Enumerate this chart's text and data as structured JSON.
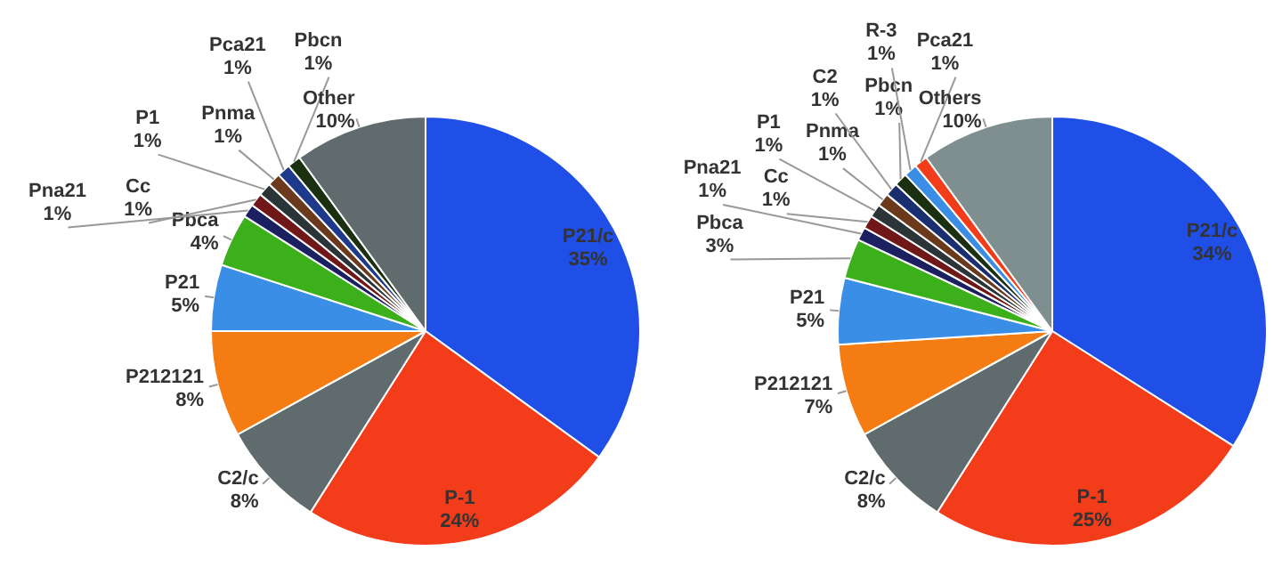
{
  "chart_data": [
    {
      "type": "pie",
      "categories": [
        "P21/c",
        "P-1",
        "C2/c",
        "P212121",
        "P21",
        "Pbca",
        "Pna21",
        "Cc",
        "P1",
        "Pnma",
        "Pca21",
        "Pbcn",
        "Other"
      ],
      "values": [
        35,
        24,
        8,
        8,
        5,
        4,
        1,
        1,
        1,
        1,
        1,
        1,
        10
      ],
      "value_labels": [
        "35%",
        "24%",
        "8%",
        "8%",
        "5%",
        "4%",
        "1%",
        "1%",
        "1%",
        "1%",
        "1%",
        "1%",
        "10%"
      ],
      "colors": [
        "#1f4fe6",
        "#f23c1a",
        "#5f6b6d",
        "#f57c12",
        "#3a8ee6",
        "#3cb01b",
        "#1a2060",
        "#701818",
        "#2b3436",
        "#6b3a1c",
        "#1f3a8a",
        "#1a3010",
        "#5f6b6d"
      ],
      "legend": false
    },
    {
      "type": "pie",
      "categories": [
        "P21/c",
        "P-1",
        "C2/c",
        "P212121",
        "P21",
        "Pbca",
        "Pna21",
        "Cc",
        "P1",
        "Pnma",
        "C2",
        "Pbcn",
        "R-3",
        "Pca21",
        "Others"
      ],
      "values": [
        34,
        25,
        8,
        7,
        5,
        3,
        1,
        1,
        1,
        1,
        1,
        1,
        1,
        1,
        10
      ],
      "value_labels": [
        "34%",
        "25%",
        "8%",
        "7%",
        "5%",
        "3%",
        "1%",
        "1%",
        "1%",
        "1%",
        "1%",
        "1%",
        "1%",
        "1%",
        "10%"
      ],
      "colors": [
        "#1f4fe6",
        "#f23c1a",
        "#5f6b6d",
        "#f57c12",
        "#3a8ee6",
        "#3cb01b",
        "#1a2060",
        "#701818",
        "#2b3436",
        "#6b3a1c",
        "#1a2f70",
        "#1a3010",
        "#3a8ee6",
        "#f23c1a",
        "#7f8f8f"
      ],
      "legend": false
    }
  ]
}
